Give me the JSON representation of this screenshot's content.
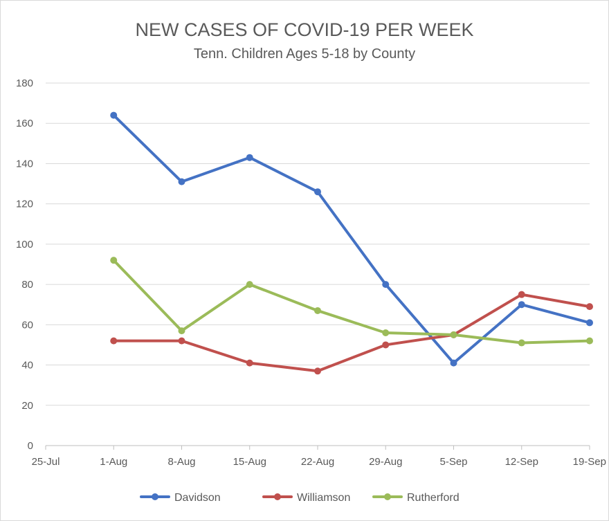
{
  "chart_data": {
    "type": "line",
    "title": "NEW CASES OF COVID-19 PER WEEK",
    "subtitle": "Tenn. Children Ages 5-18 by County",
    "categories": [
      "25-Jul",
      "1-Aug",
      "8-Aug",
      "15-Aug",
      "22-Aug",
      "29-Aug",
      "5-Sep",
      "12-Sep",
      "19-Sep"
    ],
    "ylim": [
      0,
      180
    ],
    "yticks": [
      0,
      20,
      40,
      60,
      80,
      100,
      120,
      140,
      160,
      180
    ],
    "grid": true,
    "legend": "bottom",
    "series": [
      {
        "name": "Davidson",
        "color": "#4472c4",
        "values": [
          null,
          164,
          131,
          143,
          126,
          80,
          41,
          70,
          61
        ]
      },
      {
        "name": "Williamson",
        "color": "#c0504d",
        "values": [
          null,
          52,
          52,
          41,
          37,
          50,
          55,
          75,
          69
        ]
      },
      {
        "name": "Rutherford",
        "color": "#9bbb59",
        "values": [
          null,
          92,
          57,
          80,
          67,
          56,
          55,
          51,
          52
        ]
      }
    ]
  }
}
